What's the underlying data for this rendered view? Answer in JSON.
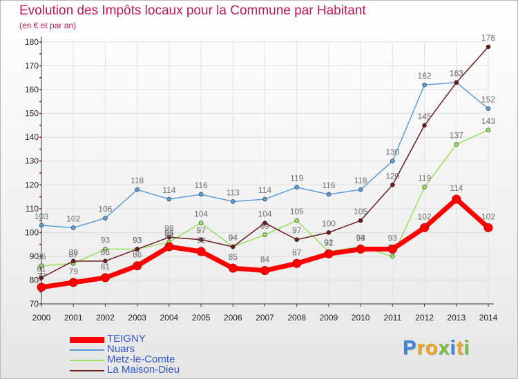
{
  "chart_data": {
    "type": "line",
    "title": "Evolution des Impôts locaux pour la Commune par Habitant",
    "subtitle": "(en € et par an)",
    "xlabel": "",
    "ylabel": "",
    "ylim": [
      70,
      180
    ],
    "yticks": [
      "70",
      "80",
      "90",
      "100",
      "110",
      "120",
      "130",
      "140",
      "150",
      "160",
      "170",
      "180"
    ],
    "categories": [
      "2000",
      "2001",
      "2002",
      "2003",
      "2004",
      "2005",
      "2006",
      "2007",
      "2008",
      "2009",
      "2010",
      "2011",
      "2012",
      "2013",
      "2014"
    ],
    "series": [
      {
        "name": "Nuars",
        "color": "#5b9bd5",
        "values": [
          103,
          102,
          106,
          118,
          114,
          116,
          113,
          114,
          119,
          116,
          118,
          130,
          162,
          163,
          152
        ],
        "labels": [
          "103",
          "102",
          "106",
          "118",
          "114",
          "116",
          "113",
          "114",
          "119",
          "116",
          "118",
          "130",
          "162",
          "163",
          "152"
        ]
      },
      {
        "name": "Metz-le-Comte",
        "color": "#99e05c",
        "values": [
          86,
          87,
          93,
          93,
          96,
          104,
          94,
          99,
          105,
          92,
          94,
          90,
          119,
          137,
          143
        ],
        "labels": [
          "86",
          "87",
          "93",
          "93",
          "96",
          "104",
          "94",
          "99",
          "105",
          "92",
          "94",
          "90",
          "119",
          "137",
          "143"
        ]
      },
      {
        "name": "La Maison-Dieu",
        "color": "#6b1a1a",
        "values": [
          81,
          88,
          88,
          93,
          98,
          97,
          94,
          104,
          97,
          100,
          105,
          120,
          145,
          163,
          178
        ],
        "labels": [
          "81",
          "88",
          "88",
          "93",
          "98",
          "97",
          "94",
          "104",
          "97",
          "100",
          "105",
          "120",
          "145",
          "163",
          "178"
        ]
      },
      {
        "name": "TEIGNY",
        "color": "#ff0000",
        "values": [
          77,
          79,
          81,
          86,
          94,
          92,
          85,
          84,
          87,
          91,
          93,
          93,
          102,
          114,
          102
        ],
        "labels": [
          "77",
          "79",
          "81",
          "86",
          "94",
          "92",
          "85",
          "84",
          "87",
          "91",
          "93",
          "93",
          "102",
          "114",
          "102"
        ]
      }
    ]
  },
  "legend": [
    {
      "name": "TEIGNY",
      "color": "#ff0000"
    },
    {
      "name": "Nuars",
      "color": "#5b9bd5"
    },
    {
      "name": "Metz-le-Comte",
      "color": "#99e05c"
    },
    {
      "name": "La Maison-Dieu",
      "color": "#6b1a1a"
    }
  ],
  "logo": {
    "text": "Proxiti",
    "letters": [
      {
        "ch": "P",
        "color": "#3a86d8"
      },
      {
        "ch": "r",
        "color": "#f2a51c"
      },
      {
        "ch": "o",
        "color": "#f2a51c"
      },
      {
        "ch": "x",
        "color": "#7bc043"
      },
      {
        "ch": "i",
        "color": "#3a86d8"
      },
      {
        "ch": "t",
        "color": "#f2a51c"
      },
      {
        "ch": "i",
        "color": "#7bc043"
      }
    ]
  }
}
